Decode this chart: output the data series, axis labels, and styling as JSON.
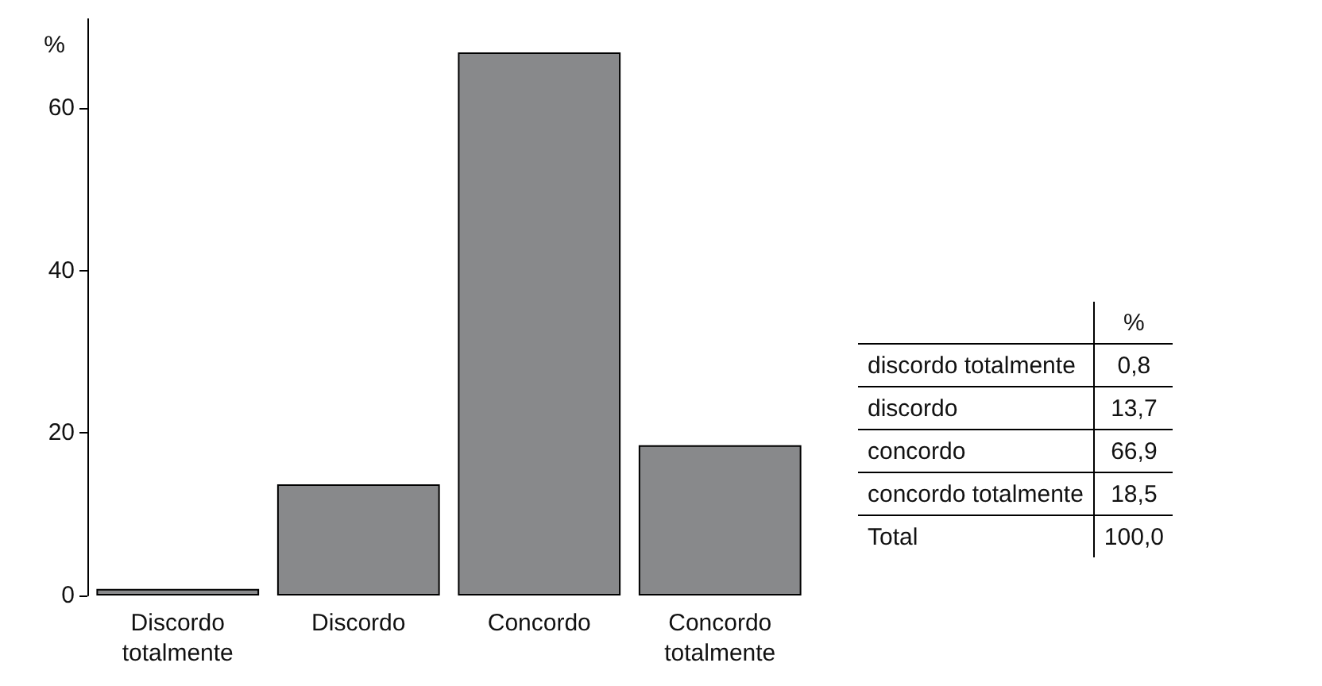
{
  "chart_data": [
    {
      "type": "bar",
      "categories": [
        "Discordo totalmente",
        "Discordo",
        "Concordo",
        "Concordo totalmente"
      ],
      "values": [
        0.8,
        13.7,
        66.9,
        18.5
      ],
      "color": "#88898b",
      "ylabel": "%",
      "ylim": [
        0,
        71
      ],
      "yticks": [
        0,
        20,
        40,
        60
      ],
      "grid": false
    },
    {
      "type": "other",
      "ylabel": "%",
      "categories": [
        "discordo totalmente",
        "discordo",
        "concordo",
        "concordo totalmente",
        "Total"
      ],
      "value_labels": [
        "0,8",
        "13,7",
        "66,9",
        "18,5",
        "100,0"
      ]
    }
  ]
}
